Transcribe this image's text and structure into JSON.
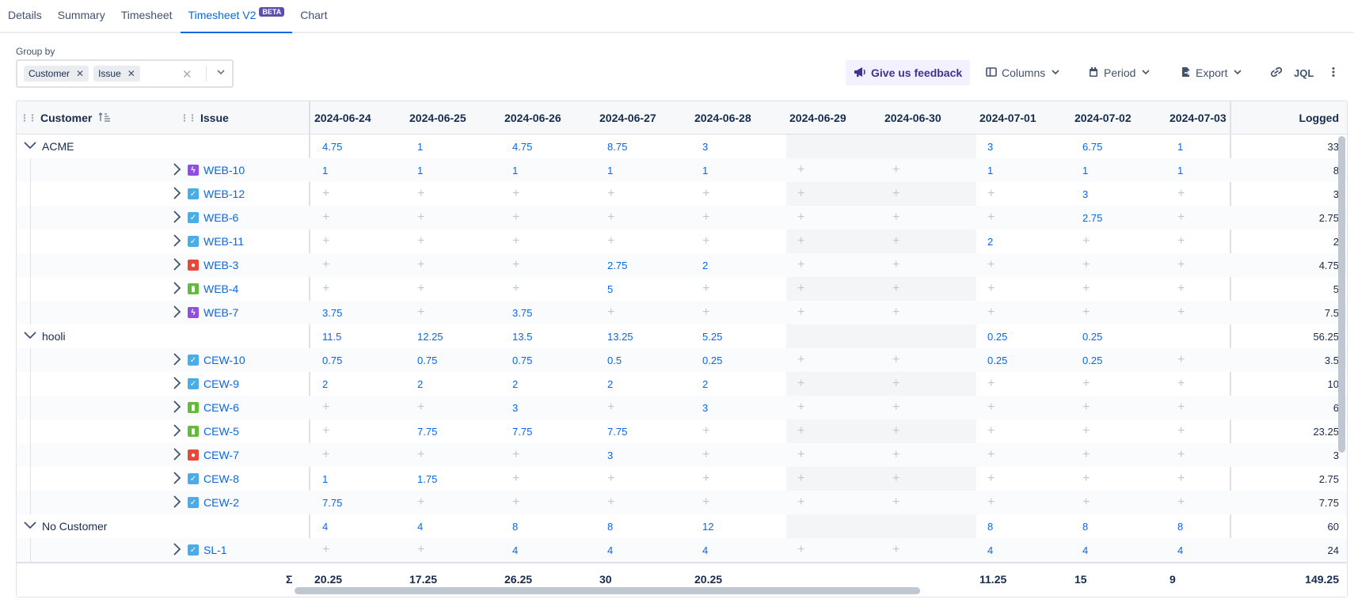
{
  "tabs": [
    "Details",
    "Summary",
    "Timesheet",
    "Timesheet V2",
    "Chart"
  ],
  "beta_badge": "BETA",
  "group_by": {
    "label": "Group by",
    "chips": [
      "Customer",
      "Issue"
    ]
  },
  "toolbar": {
    "feedback": "Give us feedback",
    "columns": "Columns",
    "period": "Period",
    "export": "Export",
    "jql": "JQL"
  },
  "header": {
    "customer": "Customer",
    "issue": "Issue",
    "dates": [
      "2024-06-24",
      "2024-06-25",
      "2024-06-26",
      "2024-06-27",
      "2024-06-28",
      "2024-06-29",
      "2024-06-30",
      "2024-07-01",
      "2024-07-02",
      "2024-07-03"
    ],
    "logged": "Logged"
  },
  "rows": [
    {
      "type": "group",
      "name": "ACME",
      "values": [
        "4.75",
        "1",
        "4.75",
        "8.75",
        "3",
        "",
        "",
        "3",
        "6.75",
        "1"
      ],
      "logged": "33"
    },
    {
      "type": "issue",
      "key": "WEB-10",
      "itype": "epic",
      "values": [
        "1",
        "1",
        "1",
        "1",
        "1",
        "+",
        "+",
        "1",
        "1",
        "1"
      ],
      "logged": "8"
    },
    {
      "type": "issue",
      "key": "WEB-12",
      "itype": "task",
      "values": [
        "+",
        "+",
        "+",
        "+",
        "+",
        "+",
        "+",
        "+",
        "3",
        "+"
      ],
      "logged": "3"
    },
    {
      "type": "issue",
      "key": "WEB-6",
      "itype": "task",
      "values": [
        "+",
        "+",
        "+",
        "+",
        "+",
        "+",
        "+",
        "+",
        "2.75",
        "+"
      ],
      "logged": "2.75"
    },
    {
      "type": "issue",
      "key": "WEB-11",
      "itype": "task",
      "values": [
        "+",
        "+",
        "+",
        "+",
        "+",
        "+",
        "+",
        "2",
        "+",
        "+"
      ],
      "logged": "2"
    },
    {
      "type": "issue",
      "key": "WEB-3",
      "itype": "bug",
      "values": [
        "+",
        "+",
        "+",
        "2.75",
        "2",
        "+",
        "+",
        "+",
        "+",
        "+"
      ],
      "logged": "4.75"
    },
    {
      "type": "issue",
      "key": "WEB-4",
      "itype": "story",
      "values": [
        "+",
        "+",
        "+",
        "5",
        "+",
        "+",
        "+",
        "+",
        "+",
        "+"
      ],
      "logged": "5"
    },
    {
      "type": "issue",
      "key": "WEB-7",
      "itype": "epic",
      "values": [
        "3.75",
        "+",
        "3.75",
        "+",
        "+",
        "+",
        "+",
        "+",
        "+",
        "+"
      ],
      "logged": "7.5"
    },
    {
      "type": "group",
      "name": "hooli",
      "values": [
        "11.5",
        "12.25",
        "13.5",
        "13.25",
        "5.25",
        "",
        "",
        "0.25",
        "0.25",
        ""
      ],
      "logged": "56.25"
    },
    {
      "type": "issue",
      "key": "CEW-10",
      "itype": "task",
      "values": [
        "0.75",
        "0.75",
        "0.75",
        "0.5",
        "0.25",
        "+",
        "+",
        "0.25",
        "0.25",
        "+"
      ],
      "logged": "3.5"
    },
    {
      "type": "issue",
      "key": "CEW-9",
      "itype": "task",
      "values": [
        "2",
        "2",
        "2",
        "2",
        "2",
        "+",
        "+",
        "+",
        "+",
        "+"
      ],
      "logged": "10"
    },
    {
      "type": "issue",
      "key": "CEW-6",
      "itype": "story",
      "values": [
        "+",
        "+",
        "3",
        "+",
        "3",
        "+",
        "+",
        "+",
        "+",
        "+"
      ],
      "logged": "6"
    },
    {
      "type": "issue",
      "key": "CEW-5",
      "itype": "story",
      "values": [
        "+",
        "7.75",
        "7.75",
        "7.75",
        "+",
        "+",
        "+",
        "+",
        "+",
        "+"
      ],
      "logged": "23.25"
    },
    {
      "type": "issue",
      "key": "CEW-7",
      "itype": "bug",
      "values": [
        "+",
        "+",
        "+",
        "3",
        "+",
        "+",
        "+",
        "+",
        "+",
        "+"
      ],
      "logged": "3"
    },
    {
      "type": "issue",
      "key": "CEW-8",
      "itype": "task",
      "values": [
        "1",
        "1.75",
        "+",
        "+",
        "+",
        "+",
        "+",
        "+",
        "+",
        "+"
      ],
      "logged": "2.75"
    },
    {
      "type": "issue",
      "key": "CEW-2",
      "itype": "task",
      "values": [
        "7.75",
        "+",
        "+",
        "+",
        "+",
        "+",
        "+",
        "+",
        "+",
        "+"
      ],
      "logged": "7.75"
    },
    {
      "type": "group",
      "name": "No Customer",
      "values": [
        "4",
        "4",
        "8",
        "8",
        "12",
        "",
        "",
        "8",
        "8",
        "8"
      ],
      "logged": "60"
    },
    {
      "type": "issue",
      "key": "SL-1",
      "itype": "task",
      "values": [
        "+",
        "+",
        "4",
        "4",
        "4",
        "+",
        "+",
        "4",
        "4",
        "4"
      ],
      "logged": "24"
    }
  ],
  "footer": {
    "sigma": "Σ",
    "totals": [
      "20.25",
      "17.25",
      "26.25",
      "30",
      "20.25",
      "",
      "",
      "11.25",
      "15",
      "9"
    ],
    "logged": "149.25"
  }
}
